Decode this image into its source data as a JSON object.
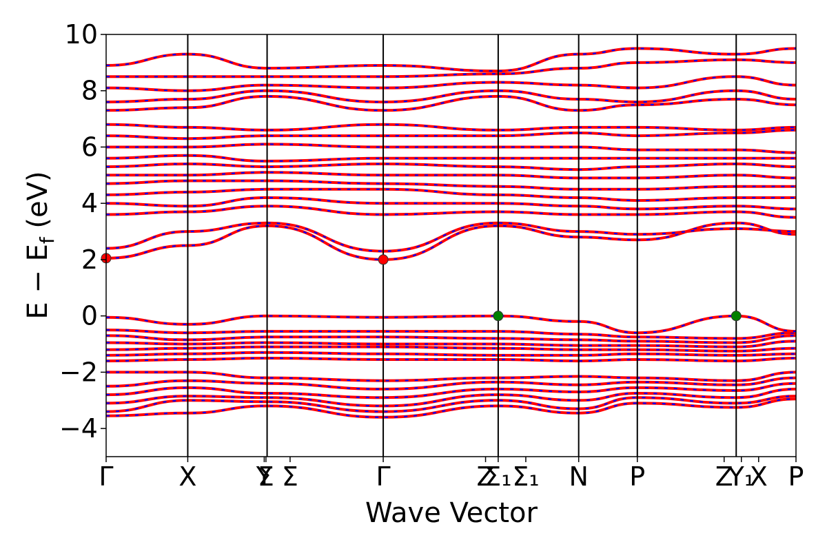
{
  "chart_data": {
    "type": "line",
    "title": "",
    "xlabel": "Wave Vector",
    "ylabel": "E − E_f (eV)",
    "ylabel_parts": {
      "lead": "E − E",
      "sub": "f",
      "tail": " (eV)"
    },
    "ylim": [
      -5,
      10
    ],
    "yticks": [
      -4,
      -2,
      0,
      2,
      4,
      6,
      8,
      10
    ],
    "ytick_labels": [
      "−4",
      "−2",
      "0",
      "2",
      "4",
      "6",
      "8",
      "10"
    ],
    "xlim": [
      0,
      12
    ],
    "kpoints": [
      {
        "label": "Γ",
        "x": 0
      },
      {
        "label": "X",
        "x": 1.42
      },
      {
        "label": "Y",
        "x": 2.75
      },
      {
        "label": "Σ",
        "x": 2.78
      },
      {
        "label": "Σ",
        "x": 3.2
      },
      {
        "label": "Γ",
        "x": 4.82
      },
      {
        "label": "Z",
        "x": 6.6
      },
      {
        "label": "Σ₁",
        "x": 6.82
      },
      {
        "label": "Σ₁",
        "x": 7.3
      },
      {
        "label": "N",
        "x": 8.22
      },
      {
        "label": "P",
        "x": 9.24
      },
      {
        "label": "Z",
        "x": 10.75
      },
      {
        "label": "Y₁",
        "x": 11.05
      },
      {
        "label": "X",
        "x": 11.35
      },
      {
        "label": "P",
        "x": 12.0
      }
    ],
    "segment_boundaries": [
      0,
      1.42,
      2.8,
      4.82,
      6.82,
      8.22,
      9.24,
      10.96,
      12.0
    ],
    "line_style": {
      "color": "#ff0000",
      "dash_color": "#0000ff",
      "dashed_overlay": true
    },
    "series": [
      {
        "x": [
          0,
          1.42,
          2.8,
          4.82,
          6.82,
          8.22,
          9.24,
          10.96,
          12.0
        ],
        "values": [
          -3.55,
          -3.45,
          -3.2,
          -3.6,
          -3.2,
          -3.45,
          -3.1,
          -3.25,
          -2.95
        ]
      },
      {
        "x": [
          0,
          1.42,
          2.8,
          4.82,
          6.82,
          8.22,
          9.24,
          10.96,
          12.0
        ],
        "values": [
          -3.4,
          -3.0,
          -3.05,
          -3.4,
          -3.0,
          -3.3,
          -2.9,
          -3.1,
          -2.85
        ]
      },
      {
        "x": [
          0,
          1.42,
          2.8,
          4.82,
          6.82,
          8.22,
          9.24,
          10.96,
          12.0
        ],
        "values": [
          -3.1,
          -2.85,
          -2.9,
          -3.2,
          -2.8,
          -3.0,
          -2.75,
          -2.9,
          -2.6
        ]
      },
      {
        "x": [
          0,
          1.42,
          2.8,
          4.82,
          6.82,
          8.22,
          9.24,
          10.96,
          12.0
        ],
        "values": [
          -2.8,
          -2.55,
          -2.75,
          -2.9,
          -2.6,
          -2.7,
          -2.55,
          -2.65,
          -2.4
        ]
      },
      {
        "x": [
          0,
          1.42,
          2.8,
          4.82,
          6.82,
          8.22,
          9.24,
          10.96,
          12.0
        ],
        "values": [
          -2.5,
          -2.3,
          -2.4,
          -2.6,
          -2.35,
          -2.45,
          -2.35,
          -2.45,
          -2.2
        ]
      },
      {
        "x": [
          0,
          1.42,
          2.8,
          4.82,
          6.82,
          8.22,
          9.24,
          10.96,
          12.0
        ],
        "values": [
          -2.0,
          -2.0,
          -2.2,
          -2.3,
          -2.2,
          -2.15,
          -2.2,
          -2.3,
          -2.0
        ]
      },
      {
        "x": [
          0,
          1.42,
          2.8,
          4.82,
          6.82,
          8.22,
          9.24,
          10.96,
          12.0
        ],
        "values": [
          -1.6,
          -1.55,
          -1.5,
          -1.55,
          -1.55,
          -1.6,
          -1.55,
          -1.6,
          -1.5
        ]
      },
      {
        "x": [
          0,
          1.42,
          2.8,
          4.82,
          6.82,
          8.22,
          9.24,
          10.96,
          12.0
        ],
        "values": [
          -1.4,
          -1.35,
          -1.3,
          -1.35,
          -1.4,
          -1.4,
          -1.35,
          -1.4,
          -1.35
        ]
      },
      {
        "x": [
          0,
          1.42,
          2.8,
          4.82,
          6.82,
          8.22,
          9.24,
          10.96,
          12.0
        ],
        "values": [
          -1.2,
          -1.15,
          -1.1,
          -1.1,
          -1.15,
          -1.2,
          -1.2,
          -1.25,
          -1.15
        ]
      },
      {
        "x": [
          0,
          1.42,
          2.8,
          4.82,
          6.82,
          8.22,
          9.24,
          10.96,
          12.0
        ],
        "values": [
          -0.95,
          -1.0,
          -0.95,
          -1.0,
          -1.0,
          -1.05,
          -1.05,
          -1.1,
          -0.9
        ]
      },
      {
        "x": [
          0,
          1.42,
          2.8,
          4.82,
          6.82,
          8.22,
          9.24,
          10.96,
          12.0
        ],
        "values": [
          -0.7,
          -0.85,
          -0.75,
          -0.75,
          -0.8,
          -0.85,
          -0.9,
          -0.95,
          -0.7
        ]
      },
      {
        "x": [
          0,
          1.42,
          2.8,
          4.82,
          6.82,
          8.22,
          9.24,
          10.96,
          12.0
        ],
        "values": [
          -0.5,
          -0.6,
          -0.55,
          -0.55,
          -0.55,
          -0.65,
          -0.75,
          -0.8,
          -0.6
        ]
      },
      {
        "x": [
          0,
          1.42,
          2.8,
          4.82,
          6.82,
          8.22,
          9.24,
          10.96,
          12.0
        ],
        "values": [
          -0.05,
          -0.3,
          0.0,
          -0.05,
          0.0,
          -0.2,
          -0.6,
          0.0,
          -0.55
        ]
      },
      {
        "x": [
          0,
          1.42,
          2.8,
          4.82,
          6.82,
          8.22,
          9.24,
          10.96,
          12.0
        ],
        "values": [
          2.05,
          2.5,
          3.2,
          2.0,
          3.2,
          2.8,
          2.7,
          3.3,
          2.9
        ]
      },
      {
        "x": [
          0,
          1.42,
          2.8,
          4.82,
          6.82,
          8.22,
          9.24,
          10.96,
          12.0
        ],
        "values": [
          2.4,
          3.0,
          3.3,
          2.3,
          3.3,
          3.0,
          2.9,
          3.1,
          3.0
        ]
      },
      {
        "x": [
          0,
          1.42,
          2.8,
          4.82,
          6.82,
          8.22,
          9.24,
          10.96,
          12.0
        ],
        "values": [
          3.6,
          3.7,
          3.9,
          3.6,
          3.7,
          3.6,
          3.6,
          3.7,
          3.5
        ]
      },
      {
        "x": [
          0,
          1.42,
          2.8,
          4.82,
          6.82,
          8.22,
          9.24,
          10.96,
          12.0
        ],
        "values": [
          4.0,
          3.9,
          4.2,
          4.0,
          4.0,
          3.9,
          3.8,
          3.9,
          3.8
        ]
      },
      {
        "x": [
          0,
          1.42,
          2.8,
          4.82,
          6.82,
          8.22,
          9.24,
          10.96,
          12.0
        ],
        "values": [
          4.3,
          4.4,
          4.5,
          4.5,
          4.3,
          4.2,
          4.1,
          4.2,
          4.2
        ]
      },
      {
        "x": [
          0,
          1.42,
          2.8,
          4.82,
          6.82,
          8.22,
          9.24,
          10.96,
          12.0
        ],
        "values": [
          4.7,
          4.8,
          4.8,
          4.7,
          4.6,
          4.5,
          4.5,
          4.6,
          4.6
        ]
      },
      {
        "x": [
          0,
          1.42,
          2.8,
          4.82,
          6.82,
          8.22,
          9.24,
          10.96,
          12.0
        ],
        "values": [
          5.0,
          5.0,
          5.1,
          5.0,
          5.0,
          4.9,
          4.9,
          5.0,
          4.9
        ]
      },
      {
        "x": [
          0,
          1.42,
          2.8,
          4.82,
          6.82,
          8.22,
          9.24,
          10.96,
          12.0
        ],
        "values": [
          5.3,
          5.4,
          5.3,
          5.4,
          5.3,
          5.2,
          5.3,
          5.4,
          5.3
        ]
      },
      {
        "x": [
          0,
          1.42,
          2.8,
          4.82,
          6.82,
          8.22,
          9.24,
          10.96,
          12.0
        ],
        "values": [
          5.6,
          5.7,
          5.5,
          5.6,
          5.6,
          5.6,
          5.6,
          5.6,
          5.6
        ]
      },
      {
        "x": [
          0,
          1.42,
          2.8,
          4.82,
          6.82,
          8.22,
          9.24,
          10.96,
          12.0
        ],
        "values": [
          6.0,
          6.0,
          6.1,
          6.0,
          6.0,
          6.0,
          5.9,
          5.9,
          5.8
        ]
      },
      {
        "x": [
          0,
          1.42,
          2.8,
          4.82,
          6.82,
          8.22,
          9.24,
          10.96,
          12.0
        ],
        "values": [
          6.4,
          6.3,
          6.4,
          6.4,
          6.4,
          6.5,
          6.4,
          6.5,
          6.6
        ]
      },
      {
        "x": [
          0,
          1.42,
          2.8,
          4.82,
          6.82,
          8.22,
          9.24,
          10.96,
          12.0
        ],
        "values": [
          6.8,
          6.7,
          6.6,
          6.8,
          6.6,
          6.7,
          6.7,
          6.6,
          6.7
        ]
      },
      {
        "x": [
          0,
          1.42,
          2.8,
          4.82,
          6.82,
          8.22,
          9.24,
          10.96,
          12.0
        ],
        "values": [
          7.3,
          7.4,
          7.8,
          7.3,
          7.8,
          7.3,
          7.5,
          7.7,
          7.5
        ]
      },
      {
        "x": [
          0,
          1.42,
          2.8,
          4.82,
          6.82,
          8.22,
          9.24,
          10.96,
          12.0
        ],
        "values": [
          7.6,
          7.7,
          8.0,
          7.6,
          8.0,
          7.7,
          7.6,
          8.0,
          7.7
        ]
      },
      {
        "x": [
          0,
          1.42,
          2.8,
          4.82,
          6.82,
          8.22,
          9.24,
          10.96,
          12.0
        ],
        "values": [
          8.1,
          8.0,
          8.2,
          8.1,
          8.3,
          8.2,
          8.1,
          8.5,
          8.2
        ]
      },
      {
        "x": [
          0,
          1.42,
          2.8,
          4.82,
          6.82,
          8.22,
          9.24,
          10.96,
          12.0
        ],
        "values": [
          8.5,
          8.5,
          8.5,
          8.5,
          8.6,
          8.8,
          9.0,
          9.1,
          9.0
        ]
      },
      {
        "x": [
          0,
          1.42,
          2.8,
          4.82,
          6.82,
          8.22,
          9.24,
          10.96,
          12.0
        ],
        "values": [
          8.9,
          9.3,
          8.8,
          8.9,
          8.7,
          9.3,
          9.5,
          9.3,
          9.5
        ]
      }
    ],
    "markers": [
      {
        "x": 0,
        "y": 2.05,
        "color": "#ff0000",
        "name": "cbm-marker-gamma-start"
      },
      {
        "x": 4.82,
        "y": 2.0,
        "color": "#ff0000",
        "name": "cbm-marker-gamma"
      },
      {
        "x": 6.82,
        "y": 0.0,
        "color": "#008000",
        "name": "vbm-marker-sigma1"
      },
      {
        "x": 10.96,
        "y": 0.0,
        "color": "#008000",
        "name": "vbm-marker-y1"
      }
    ],
    "grid": false,
    "legend": "none"
  }
}
